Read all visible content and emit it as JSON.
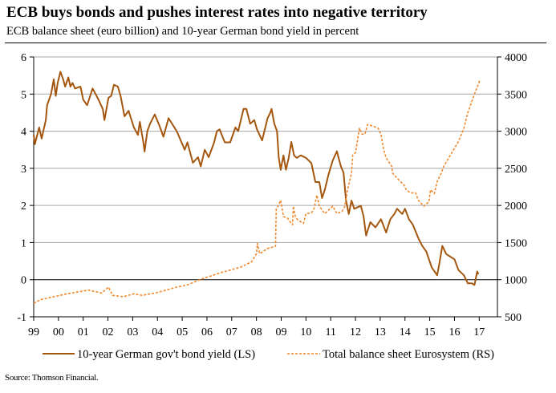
{
  "title": "ECB buys bonds and pushes interest rates into negative territory",
  "subtitle": "ECB balance sheet (euro billion) and 10-year German bond yield in percent",
  "source": "Source: Thomson Financial.",
  "chart_data": {
    "type": "line",
    "title": "ECB buys bonds and pushes interest rates into negative territory",
    "subtitle": "ECB balance sheet (euro billion) and 10-year German bond yield in percent",
    "x_tick_labels": [
      "99",
      "00",
      "01",
      "02",
      "03",
      "04",
      "05",
      "06",
      "07",
      "08",
      "09",
      "10",
      "11",
      "12",
      "13",
      "14",
      "15",
      "16",
      "17"
    ],
    "x_ticks": [
      1999,
      2000,
      2001,
      2002,
      2003,
      2004,
      2005,
      2006,
      2007,
      2008,
      2009,
      2010,
      2011,
      2012,
      2013,
      2014,
      2015,
      2016,
      2017
    ],
    "xlim": [
      1999,
      2017.75
    ],
    "y_left": {
      "ticks": [
        -1,
        0,
        1,
        2,
        3,
        4,
        5,
        6
      ],
      "ylim": [
        -1,
        6
      ]
    },
    "y_right": {
      "ticks": [
        500,
        1000,
        1500,
        2000,
        2500,
        3000,
        3500,
        4000
      ],
      "ylim": [
        500,
        4000
      ]
    },
    "grid": "horizontal",
    "legend_placement": "bottom",
    "series": [
      {
        "name": "10-year German gov't bond yield (LS)",
        "axis": "left",
        "style": "solid",
        "color": "#a4560f",
        "x": [
          1999.0,
          1999.05,
          1999.22,
          1999.32,
          1999.49,
          1999.54,
          1999.7,
          1999.81,
          1999.89,
          1999.97,
          2000.08,
          2000.19,
          2000.27,
          2000.4,
          2000.48,
          2000.57,
          2000.67,
          2000.89,
          2001.0,
          2001.16,
          2001.38,
          2001.54,
          2001.65,
          2001.79,
          2001.86,
          2002.02,
          2002.13,
          2002.24,
          2002.4,
          2002.51,
          2002.67,
          2002.83,
          2003.05,
          2003.21,
          2003.29,
          2003.43,
          2003.48,
          2003.59,
          2003.7,
          2003.89,
          2004.08,
          2004.24,
          2004.45,
          2004.78,
          2005.1,
          2005.21,
          2005.43,
          2005.64,
          2005.75,
          2005.91,
          2006.07,
          2006.29,
          2006.4,
          2006.51,
          2006.72,
          2006.94,
          2007.15,
          2007.26,
          2007.48,
          2007.59,
          2007.75,
          2007.91,
          2008.02,
          2008.23,
          2008.45,
          2008.56,
          2008.61,
          2008.72,
          2008.83,
          2008.9,
          2008.98,
          2009.09,
          2009.19,
          2009.3,
          2009.41,
          2009.52,
          2009.63,
          2009.79,
          2010.0,
          2010.22,
          2010.38,
          2010.54,
          2010.65,
          2010.76,
          2010.92,
          2011.08,
          2011.25,
          2011.41,
          2011.52,
          2011.62,
          2011.73,
          2011.84,
          2011.95,
          2012.22,
          2012.33,
          2012.43,
          2012.6,
          2012.81,
          2013.03,
          2013.24,
          2013.41,
          2013.57,
          2013.68,
          2013.89,
          2014.0,
          2014.16,
          2014.32,
          2014.54,
          2014.7,
          2014.86,
          2015.08,
          2015.3,
          2015.4,
          2015.51,
          2015.67,
          2015.83,
          2016.0,
          2016.16,
          2016.38,
          2016.54,
          2016.7,
          2016.81,
          2016.92,
          2016.97
        ],
        "y": [
          3.9,
          3.65,
          4.1,
          3.8,
          4.3,
          4.7,
          5.0,
          5.4,
          4.95,
          5.3,
          5.6,
          5.4,
          5.2,
          5.45,
          5.2,
          5.3,
          5.15,
          5.2,
          4.85,
          4.7,
          5.15,
          4.95,
          4.8,
          4.6,
          4.3,
          4.9,
          4.95,
          5.25,
          5.2,
          4.95,
          4.4,
          4.55,
          4.1,
          3.9,
          4.25,
          3.7,
          3.45,
          4.0,
          4.2,
          4.45,
          4.15,
          3.85,
          4.35,
          4.0,
          3.5,
          3.7,
          3.15,
          3.3,
          3.05,
          3.5,
          3.3,
          3.7,
          4.0,
          4.05,
          3.7,
          3.7,
          4.1,
          4.0,
          4.6,
          4.6,
          4.2,
          4.3,
          4.05,
          3.75,
          4.35,
          4.5,
          4.6,
          4.2,
          4.0,
          3.3,
          2.96,
          3.35,
          2.96,
          3.28,
          3.71,
          3.35,
          3.28,
          3.35,
          3.28,
          3.14,
          2.63,
          2.63,
          2.2,
          2.42,
          2.85,
          3.21,
          3.46,
          3.06,
          2.88,
          2.13,
          1.77,
          2.13,
          1.91,
          1.99,
          1.7,
          1.19,
          1.55,
          1.41,
          1.63,
          1.27,
          1.63,
          1.77,
          1.91,
          1.77,
          1.91,
          1.63,
          1.48,
          1.12,
          0.91,
          0.76,
          0.33,
          0.12,
          0.47,
          0.91,
          0.69,
          0.62,
          0.55,
          0.26,
          0.12,
          -0.1,
          -0.1,
          -0.14,
          0.22,
          0.15
        ]
      },
      {
        "name": "Total balance sheet Eurosystem (RS)",
        "axis": "right",
        "style": "dashed",
        "color": "#f0882a",
        "x": [
          1999.0,
          1999.27,
          1999.81,
          2000.35,
          2000.89,
          2001.21,
          2001.75,
          2002.02,
          2002.19,
          2002.62,
          2003.05,
          2003.37,
          2003.91,
          2004.35,
          2004.78,
          2005.21,
          2005.64,
          2006.07,
          2006.51,
          2006.94,
          2007.37,
          2007.8,
          2008.0,
          2008.04,
          2008.13,
          2008.45,
          2008.77,
          2008.8,
          2008.87,
          2008.98,
          2009.09,
          2009.25,
          2009.36,
          2009.46,
          2009.49,
          2009.57,
          2009.68,
          2009.9,
          2010.0,
          2010.22,
          2010.33,
          2010.44,
          2010.54,
          2010.76,
          2010.92,
          2011.08,
          2011.25,
          2011.46,
          2011.57,
          2011.68,
          2011.84,
          2011.89,
          2012.0,
          2012.16,
          2012.27,
          2012.38,
          2012.49,
          2012.7,
          2012.92,
          2013.03,
          2013.14,
          2013.24,
          2013.46,
          2013.51,
          2013.73,
          2013.95,
          2014.05,
          2014.22,
          2014.43,
          2014.54,
          2014.76,
          2014.97,
          2015.03,
          2015.19,
          2015.3,
          2015.46,
          2015.57,
          2015.84,
          2016.16,
          2016.38,
          2016.54,
          2016.81,
          2017.02
        ],
        "y": [
          680,
          730,
          770,
          810,
          840,
          860,
          820,
          900,
          790,
          770,
          810,
          790,
          820,
          860,
          900,
          930,
          990,
          1040,
          1090,
          1130,
          1170,
          1240,
          1350,
          1490,
          1350,
          1420,
          1450,
          1950,
          1990,
          2070,
          1850,
          1830,
          1780,
          1740,
          1990,
          1850,
          1800,
          1760,
          1890,
          1900,
          1960,
          2140,
          1990,
          1890,
          1940,
          1990,
          1890,
          1920,
          1990,
          2210,
          2430,
          2680,
          2710,
          3040,
          2960,
          2960,
          3090,
          3070,
          3040,
          2960,
          2750,
          2640,
          2530,
          2430,
          2350,
          2280,
          2210,
          2170,
          2170,
          2070,
          1990,
          2050,
          2210,
          2160,
          2320,
          2430,
          2530,
          2680,
          2860,
          3040,
          3250,
          3500,
          3680
        ]
      }
    ]
  }
}
